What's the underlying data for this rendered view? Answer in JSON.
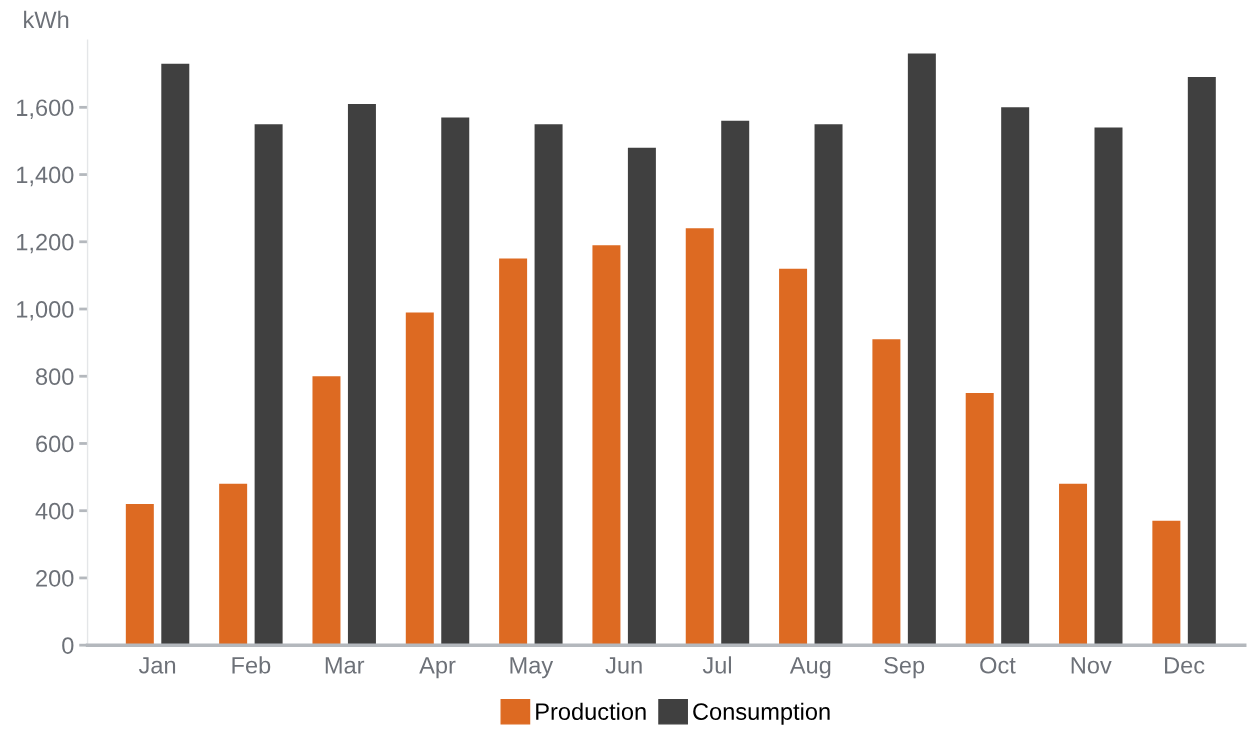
{
  "chart_data": {
    "type": "bar",
    "ylabel": "kWh",
    "categories": [
      "Jan",
      "Feb",
      "Mar",
      "Apr",
      "May",
      "Jun",
      "Jul",
      "Aug",
      "Sep",
      "Oct",
      "Nov",
      "Dec"
    ],
    "series": [
      {
        "name": "Production",
        "color": "#dd6a22",
        "values": [
          420,
          480,
          800,
          990,
          1150,
          1190,
          1240,
          1120,
          910,
          750,
          480,
          370
        ]
      },
      {
        "name": "Consumption",
        "color": "#404040",
        "values": [
          1730,
          1550,
          1610,
          1570,
          1550,
          1480,
          1560,
          1550,
          1760,
          1600,
          1540,
          1690
        ]
      }
    ],
    "ylim": [
      0,
      1800
    ],
    "yticks": [
      0,
      200,
      400,
      600,
      800,
      {
        "value": 1000,
        "label": "1,000"
      },
      {
        "value": 1200,
        "label": "1,200"
      },
      {
        "value": 1400,
        "label": "1,400"
      },
      {
        "value": 1600,
        "label": "1,600"
      }
    ],
    "legend": "bottom"
  }
}
